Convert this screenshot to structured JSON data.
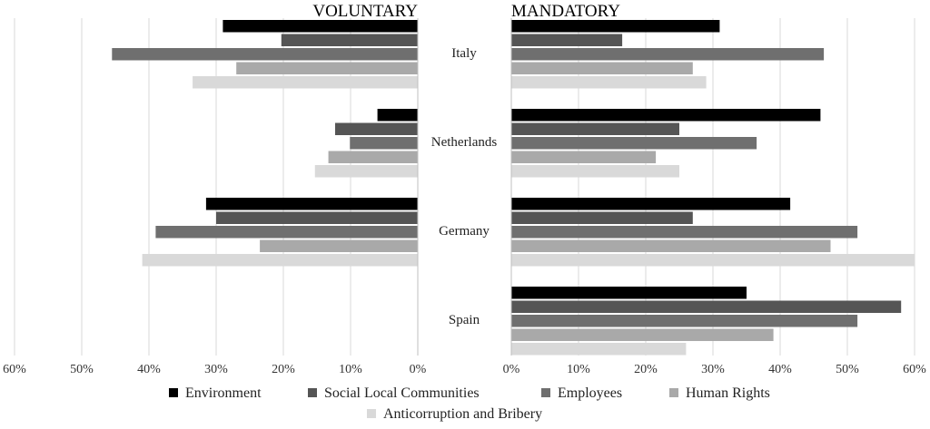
{
  "chart_data": {
    "type": "bar",
    "orientation": "horizontal",
    "layout": "back-to-back",
    "panels": [
      {
        "key": "voluntary",
        "title": "VOLUNTARY"
      },
      {
        "key": "mandatory",
        "title": "MANDATORY"
      }
    ],
    "categories": [
      "Italy",
      "Netherlands",
      "Germany",
      "Spain"
    ],
    "series": [
      {
        "name": "Environment",
        "color": "#000000",
        "voluntary": [
          29,
          6,
          31.5,
          0
        ],
        "mandatory": [
          31,
          46,
          41.5,
          35
        ]
      },
      {
        "name": "Social Local Communities",
        "color": "#555555",
        "voluntary": [
          20.3,
          12.3,
          30,
          0
        ],
        "mandatory": [
          16.5,
          25,
          27,
          58
        ]
      },
      {
        "name": "Employees",
        "color": "#6f6f6f",
        "voluntary": [
          45.5,
          10.1,
          39,
          0
        ],
        "mandatory": [
          46.5,
          36.5,
          51.5,
          51.5
        ]
      },
      {
        "name": "Human Rights",
        "color": "#a9a9a9",
        "voluntary": [
          27,
          13.3,
          23.5,
          0
        ],
        "mandatory": [
          27,
          21.5,
          47.5,
          39
        ]
      },
      {
        "name": "Anticorruption and Bribery",
        "color": "#d9d9d9",
        "voluntary": [
          33.5,
          15.3,
          41,
          0
        ],
        "mandatory": [
          29,
          25,
          60,
          26
        ]
      }
    ],
    "xlim": [
      0,
      60
    ],
    "ticks": [
      "0%",
      "10%",
      "20%",
      "30%",
      "40%",
      "50%",
      "60%"
    ],
    "grid": true,
    "legend_position": "bottom"
  }
}
